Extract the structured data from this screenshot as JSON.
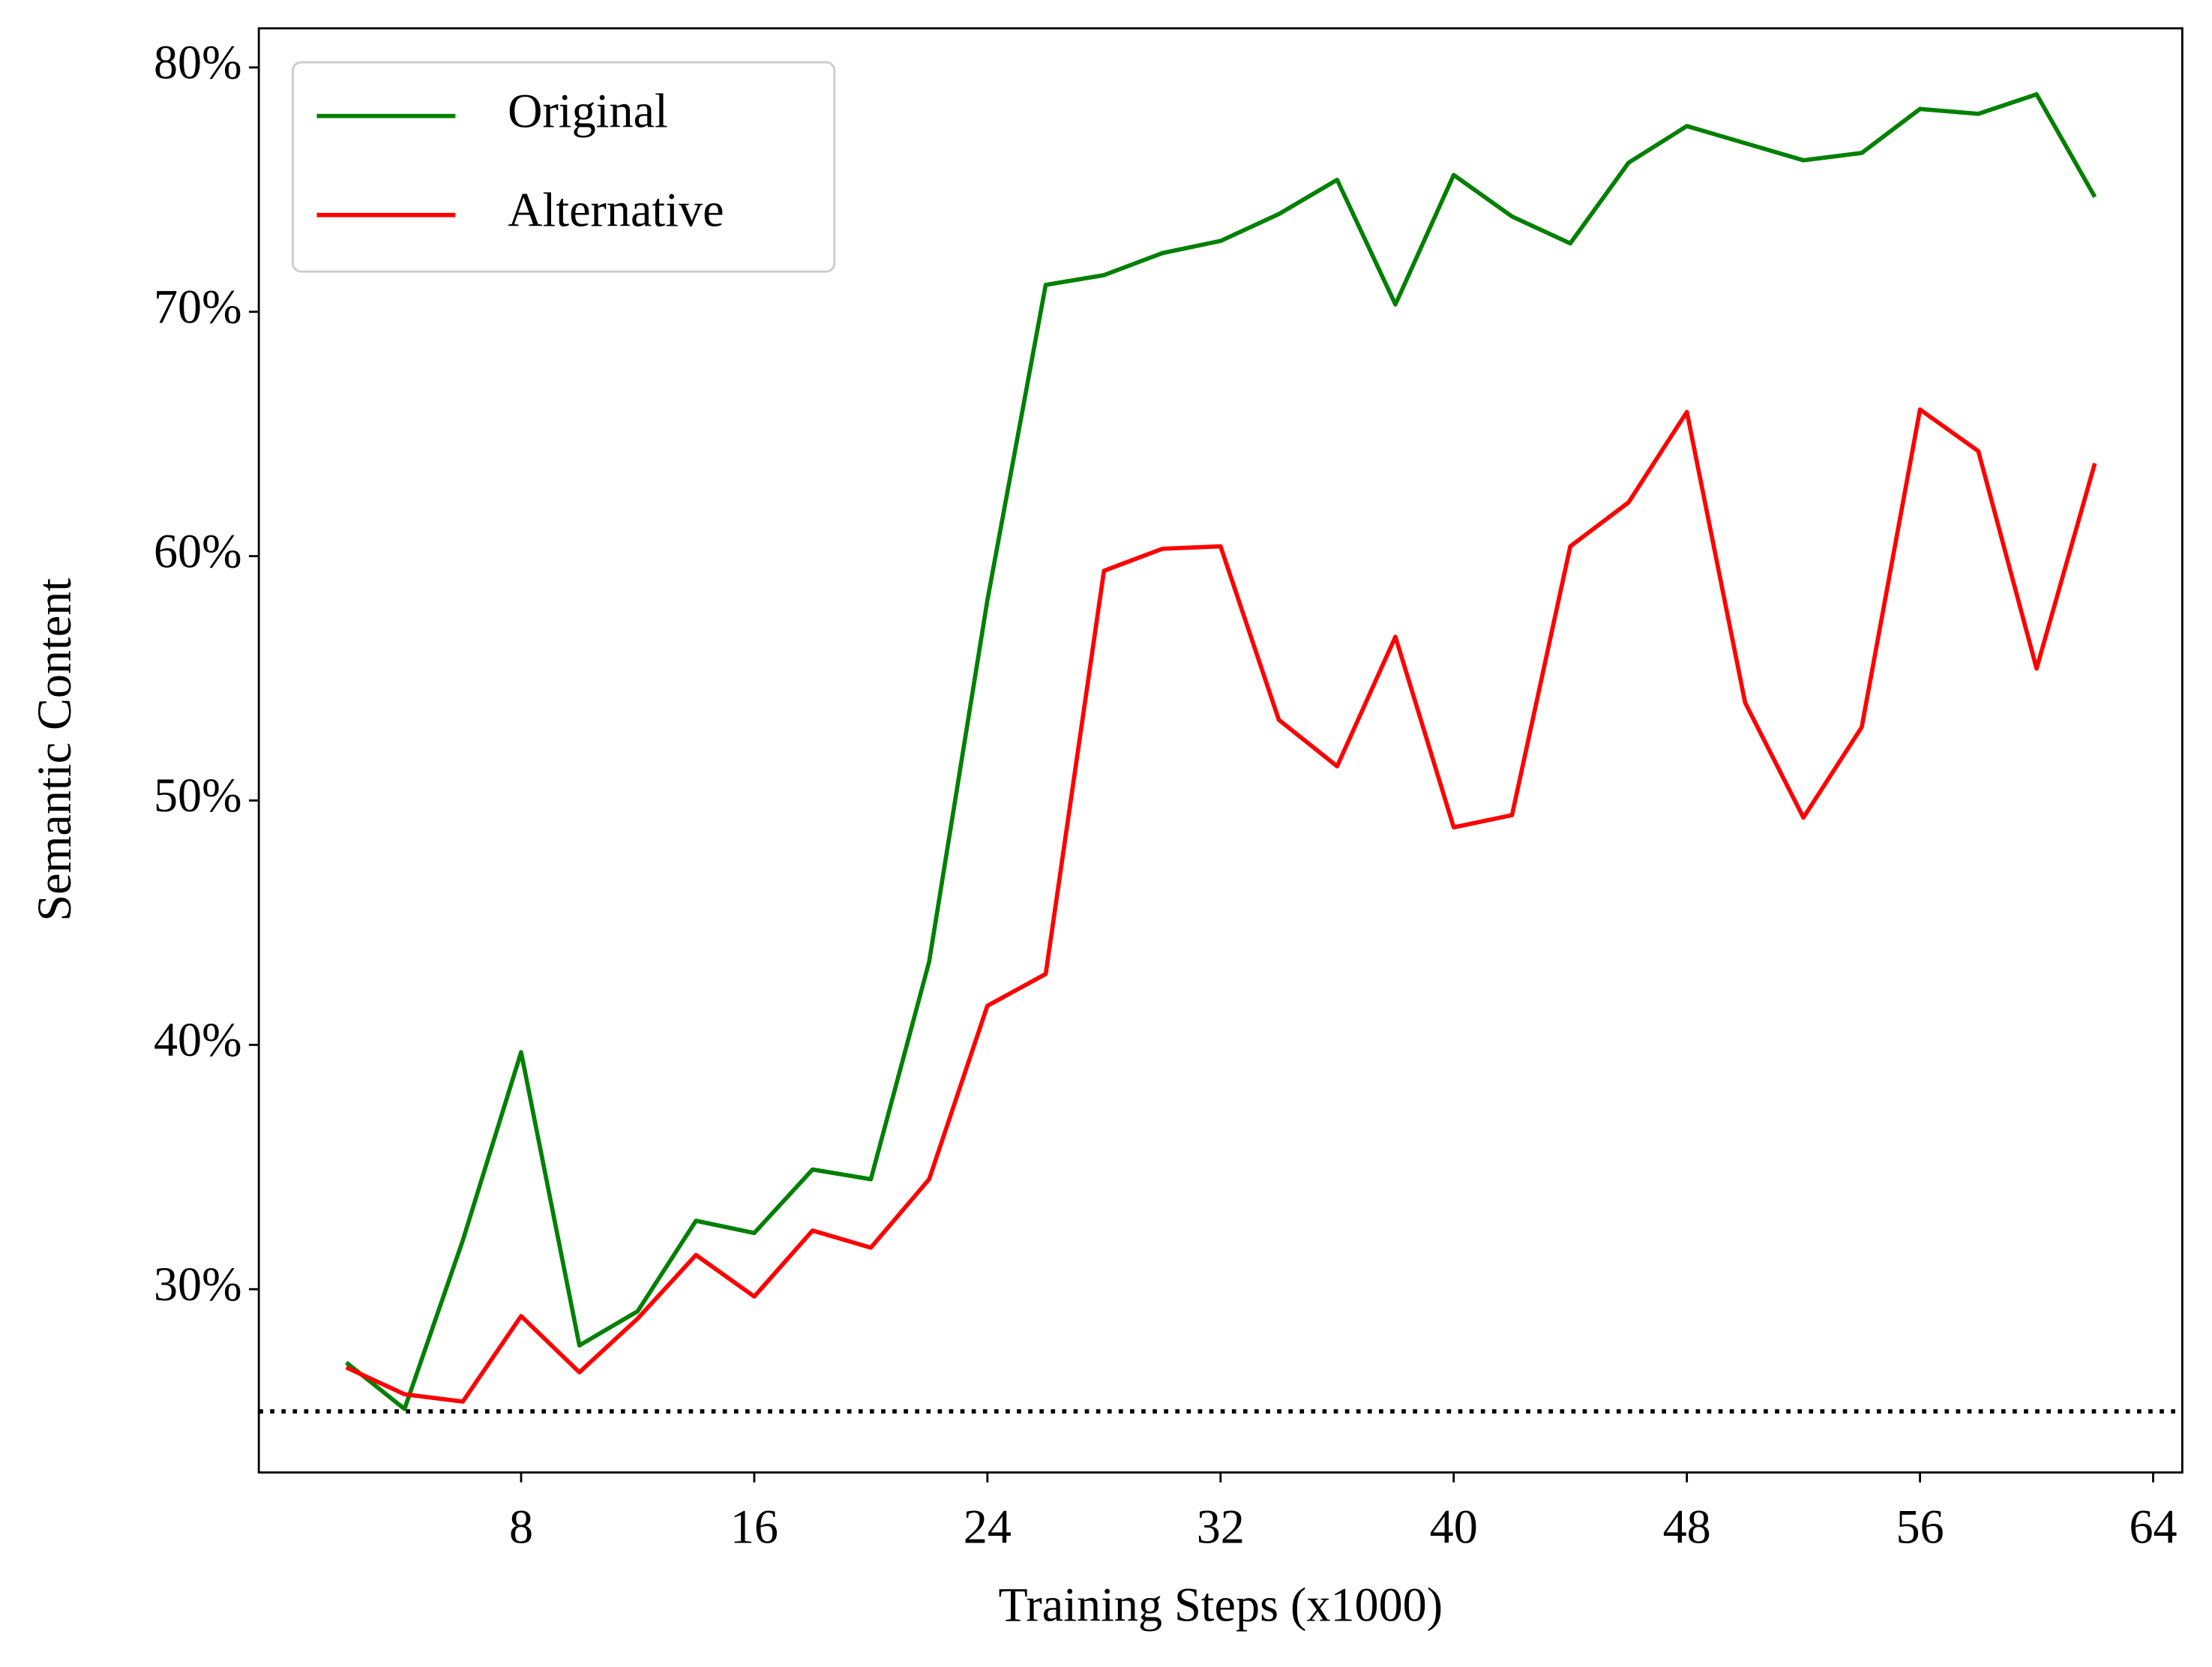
{
  "chart_data": {
    "type": "line",
    "xlabel": "Training Steps (x1000)",
    "ylabel": "Semantic Content",
    "x": [
      2,
      4,
      6,
      8,
      10,
      12,
      14,
      16,
      18,
      20,
      22,
      24,
      26,
      28,
      30,
      32,
      34,
      36,
      38,
      40,
      42,
      44,
      46,
      48,
      50,
      52,
      54,
      56,
      58,
      60,
      62
    ],
    "series": [
      {
        "name": "Original",
        "color": "#008000",
        "values": [
          27.0,
          25.1,
          32.0,
          39.7,
          27.7,
          29.1,
          32.8,
          32.3,
          34.9,
          34.5,
          43.4,
          58.2,
          71.1,
          71.5,
          72.4,
          72.9,
          74.0,
          75.4,
          70.3,
          75.6,
          73.9,
          72.8,
          76.1,
          77.6,
          76.9,
          76.2,
          76.5,
          78.3,
          78.1,
          78.9,
          74.7
        ]
      },
      {
        "name": "Alternative",
        "color": "#ff0000",
        "values": [
          26.8,
          25.7,
          25.4,
          28.9,
          26.6,
          28.8,
          31.4,
          29.7,
          32.4,
          31.7,
          34.5,
          41.6,
          42.9,
          59.4,
          60.3,
          60.4,
          53.3,
          51.4,
          56.7,
          48.9,
          49.4,
          60.4,
          62.2,
          65.9,
          54.0,
          49.3,
          53.0,
          66.0,
          64.3,
          55.4,
          63.8
        ]
      }
    ],
    "reference_line": {
      "value": 25,
      "color": "#000000",
      "style": "dotted"
    },
    "xlim": [
      -1,
      65
    ],
    "xticks": [
      8,
      16,
      24,
      32,
      40,
      48,
      56,
      64
    ],
    "ylim": [
      22.5,
      81.6
    ],
    "yticks": [
      {
        "value": 30,
        "label": "30%"
      },
      {
        "value": 40,
        "label": "40%"
      },
      {
        "value": 50,
        "label": "50%"
      },
      {
        "value": 60,
        "label": "60%"
      },
      {
        "value": 70,
        "label": "70%"
      },
      {
        "value": 80,
        "label": "80%"
      }
    ],
    "grid": false,
    "legend": "upper left"
  }
}
